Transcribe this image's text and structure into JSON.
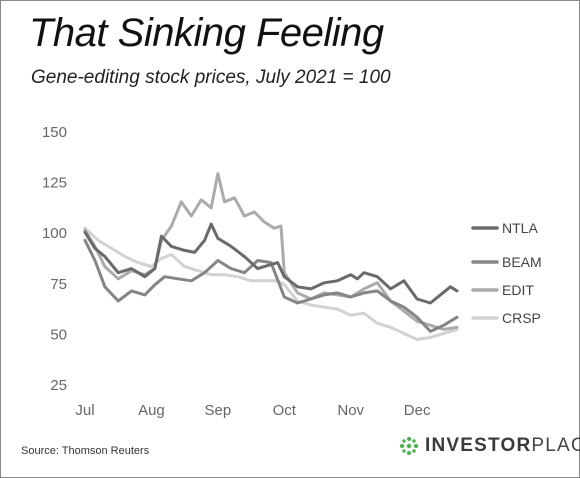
{
  "title": "That Sinking Feeling",
  "subtitle": "Gene-editing stock prices, July 2021 = 100",
  "source": "Source: Thomson Reuters",
  "logo": {
    "text_bold": "INVESTOR",
    "text_light": "PLACE"
  },
  "colors": {
    "NTLA": "#6a6a6a",
    "BEAM": "#858585",
    "EDIT": "#ababab",
    "CRSP": "#d2d2d2",
    "logo_green": "#4caf50"
  },
  "chart_data": {
    "type": "line",
    "title": "That Sinking Feeling",
    "subtitle": "Gene-editing stock prices, July 2021 = 100",
    "xlabel": "",
    "ylabel": "",
    "x_ticks": [
      "Jul",
      "Aug",
      "Sep",
      "Oct",
      "Nov",
      "Dec"
    ],
    "xlim": [
      0,
      5.6
    ],
    "ylim": [
      25,
      150
    ],
    "y_ticks": [
      "25",
      "50",
      "75",
      "100",
      "125",
      "150"
    ],
    "grid": false,
    "legend": "right",
    "series": [
      {
        "name": "NTLA",
        "x": [
          0,
          0.15,
          0.3,
          0.5,
          0.7,
          0.9,
          1.05,
          1.15,
          1.3,
          1.5,
          1.65,
          1.8,
          1.9,
          2.0,
          2.2,
          2.4,
          2.6,
          2.8,
          2.9,
          3.0,
          3.2,
          3.4,
          3.6,
          3.8,
          4.0,
          4.1,
          4.2,
          4.4,
          4.6,
          4.8,
          5.0,
          5.2,
          5.35,
          5.5,
          5.6
        ],
        "y": [
          100,
          92,
          88,
          80,
          82,
          78,
          82,
          98,
          93,
          91,
          90,
          96,
          104,
          97,
          93,
          88,
          82,
          84,
          85,
          78,
          73,
          72,
          75,
          76,
          79,
          77,
          80,
          78,
          72,
          76,
          67,
          65,
          69,
          73,
          71
        ]
      },
      {
        "name": "BEAM",
        "x": [
          0,
          0.15,
          0.3,
          0.5,
          0.7,
          0.9,
          1.05,
          1.2,
          1.4,
          1.6,
          1.8,
          2.0,
          2.2,
          2.4,
          2.6,
          2.8,
          3.0,
          3.2,
          3.4,
          3.6,
          3.8,
          4.0,
          4.2,
          4.4,
          4.6,
          4.8,
          5.0,
          5.2,
          5.4,
          5.6
        ],
        "y": [
          96,
          86,
          73,
          66,
          71,
          69,
          74,
          78,
          77,
          76,
          80,
          86,
          82,
          80,
          86,
          85,
          68,
          65,
          67,
          69,
          70,
          68,
          70,
          71,
          66,
          63,
          58,
          51,
          54,
          58
        ]
      },
      {
        "name": "EDIT",
        "x": [
          0,
          0.15,
          0.3,
          0.5,
          0.7,
          0.9,
          1.05,
          1.15,
          1.3,
          1.45,
          1.6,
          1.75,
          1.9,
          2.0,
          2.1,
          2.25,
          2.4,
          2.55,
          2.7,
          2.85,
          2.95,
          3.0,
          3.2,
          3.4,
          3.6,
          3.8,
          4.0,
          4.2,
          4.4,
          4.6,
          4.8,
          5.0,
          5.2,
          5.4,
          5.6
        ],
        "y": [
          101,
          93,
          83,
          77,
          81,
          79,
          82,
          96,
          103,
          115,
          108,
          116,
          112,
          129,
          115,
          117,
          108,
          110,
          105,
          102,
          103,
          80,
          70,
          67,
          70,
          69,
          68,
          72,
          75,
          66,
          61,
          56,
          54,
          52,
          53
        ]
      },
      {
        "name": "CRSP",
        "x": [
          0,
          0.2,
          0.4,
          0.6,
          0.8,
          1.0,
          1.15,
          1.3,
          1.5,
          1.7,
          1.9,
          2.1,
          2.3,
          2.5,
          2.7,
          2.9,
          3.0,
          3.2,
          3.4,
          3.6,
          3.8,
          4.0,
          4.2,
          4.4,
          4.6,
          4.8,
          5.0,
          5.2,
          5.4,
          5.6
        ],
        "y": [
          102,
          96,
          92,
          88,
          85,
          83,
          87,
          89,
          83,
          81,
          79,
          79,
          78,
          76,
          76,
          76,
          74,
          66,
          64,
          63,
          62,
          59,
          60,
          55,
          53,
          50,
          47,
          48,
          50,
          52
        ]
      }
    ]
  }
}
